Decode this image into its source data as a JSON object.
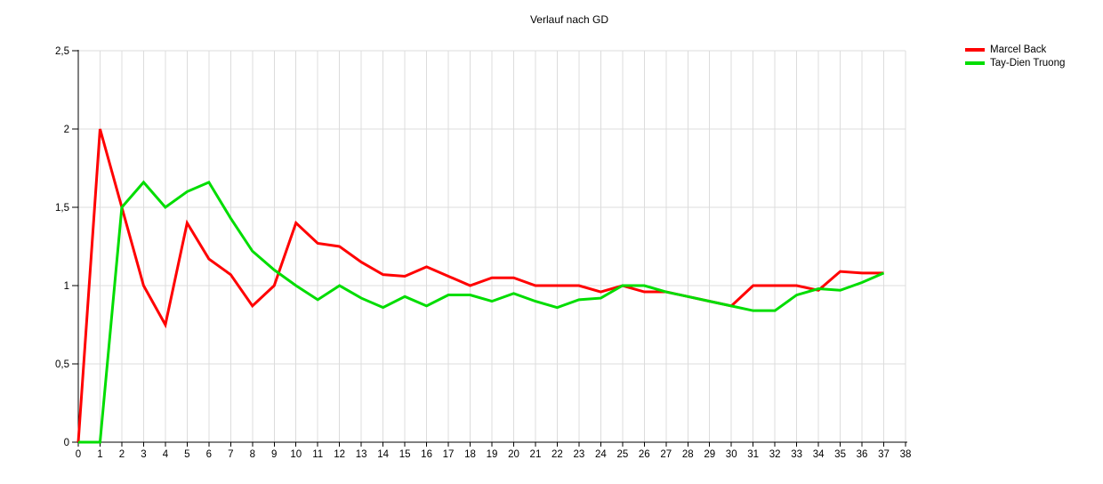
{
  "title": "Verlauf nach GD",
  "chart_data": {
    "type": "line",
    "title": "Verlauf nach GD",
    "xlabel": "",
    "ylabel": "",
    "xlim": [
      0,
      38
    ],
    "ylim": [
      0,
      2.5
    ],
    "grid": true,
    "legend_position": "top-right",
    "x_tick_labels": [
      "0",
      "1",
      "2",
      "3",
      "4",
      "5",
      "6",
      "7",
      "8",
      "9",
      "10",
      "11",
      "12",
      "13",
      "14",
      "15",
      "16",
      "17",
      "18",
      "19",
      "20",
      "21",
      "22",
      "23",
      "24",
      "25",
      "26",
      "27",
      "28",
      "29",
      "30",
      "31",
      "32",
      "33",
      "34",
      "35",
      "36",
      "37",
      "38"
    ],
    "y_tick_labels": [
      "0",
      "0,5",
      "1",
      "1,5",
      "2",
      "2,5"
    ],
    "y_tick_values": [
      0,
      0.5,
      1,
      1.5,
      2,
      2.5
    ],
    "x": [
      0,
      1,
      2,
      3,
      4,
      5,
      6,
      7,
      8,
      9,
      10,
      11,
      12,
      13,
      14,
      15,
      16,
      17,
      18,
      19,
      20,
      21,
      22,
      23,
      24,
      25,
      26,
      27,
      28,
      29,
      30,
      31,
      32,
      33,
      34,
      35,
      36,
      37
    ],
    "series": [
      {
        "name": "Marcel Back",
        "color": "#ff0000",
        "values": [
          0,
          2.0,
          1.5,
          1.0,
          0.75,
          1.4,
          1.17,
          1.07,
          0.87,
          1.0,
          1.4,
          1.27,
          1.25,
          1.15,
          1.07,
          1.06,
          1.12,
          1.06,
          1.0,
          1.05,
          1.05,
          1.0,
          1.0,
          1.0,
          0.96,
          1.0,
          0.96,
          0.96,
          0.93,
          0.9,
          0.87,
          1.0,
          1.0,
          1.0,
          0.97,
          1.09,
          1.08,
          1.08
        ]
      },
      {
        "name": "Tay-Dien Truong",
        "color": "#00dd00",
        "values": [
          0,
          0,
          1.5,
          1.66,
          1.5,
          1.6,
          1.66,
          1.43,
          1.22,
          1.1,
          1.0,
          0.91,
          1.0,
          0.92,
          0.86,
          0.93,
          0.87,
          0.94,
          0.94,
          0.9,
          0.95,
          0.9,
          0.86,
          0.91,
          0.92,
          1.0,
          1.0,
          0.96,
          0.93,
          0.9,
          0.87,
          0.84,
          0.84,
          0.94,
          0.98,
          0.97,
          1.02,
          1.08
        ]
      }
    ]
  },
  "legend": {
    "items": [
      {
        "label": "Marcel Back",
        "color": "#ff0000"
      },
      {
        "label": "Tay-Dien Truong",
        "color": "#00dd00"
      }
    ]
  },
  "colors": {
    "background": "#ffffff",
    "grid": "#dcdcdc",
    "axis": "#000000",
    "text": "#000000"
  }
}
